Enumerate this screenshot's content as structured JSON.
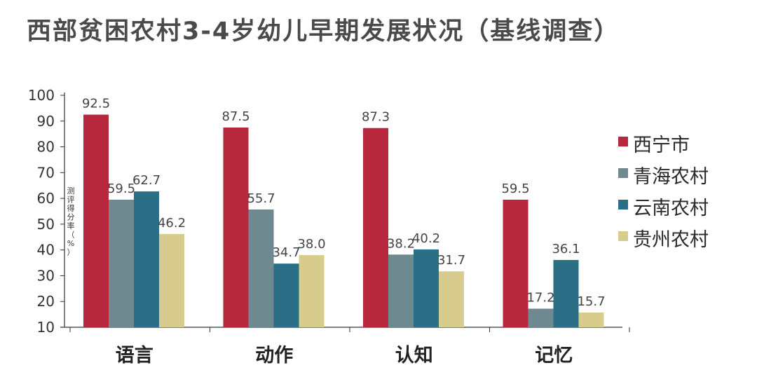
{
  "chart_data": {
    "type": "bar",
    "title": "西部贫困农村3-4岁幼儿早期发展状况（基线调查）",
    "ylabel": "测评得分率（%）",
    "xlabel": "",
    "categories": [
      "语言",
      "动作",
      "认知",
      "记忆"
    ],
    "ylim": [
      10,
      100
    ],
    "yticks": [
      10,
      20,
      30,
      40,
      50,
      60,
      70,
      80,
      90,
      100
    ],
    "legend_position": "right",
    "grid": false,
    "series": [
      {
        "name": "西宁市",
        "color": "#b7283e",
        "values": [
          92.5,
          87.5,
          87.3,
          59.5
        ]
      },
      {
        "name": "青海农村",
        "color": "#6e8a90",
        "values": [
          59.5,
          55.7,
          38.2,
          17.2
        ]
      },
      {
        "name": "云南农村",
        "color": "#2a6f86",
        "values": [
          62.7,
          34.7,
          40.2,
          36.1
        ]
      },
      {
        "name": "贵州农村",
        "color": "#d8cb8e",
        "values": [
          46.2,
          38.0,
          31.7,
          15.7
        ]
      }
    ],
    "data_labels": [
      [
        "92.5",
        "59.5",
        "62.7",
        "46.2"
      ],
      [
        "87.5",
        "55.7",
        "34.7",
        "38.0"
      ],
      [
        "87.3",
        "38.2",
        "40.2",
        "31.7"
      ],
      [
        "59.5",
        "17.2",
        "36.1",
        "15.7"
      ]
    ]
  }
}
